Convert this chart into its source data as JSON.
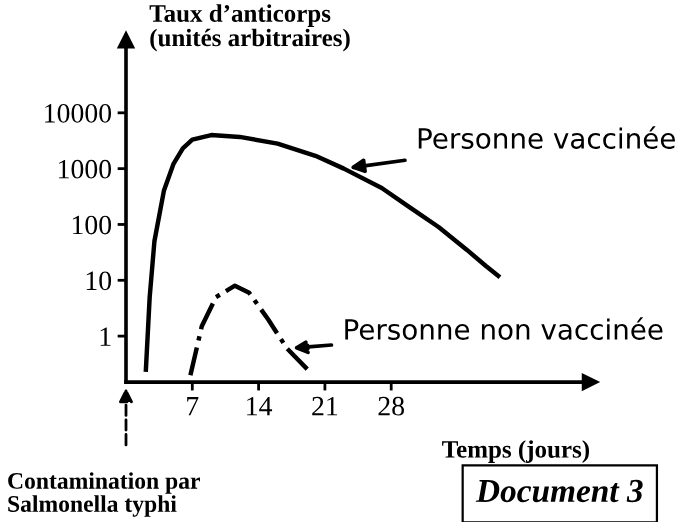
{
  "chart_data": {
    "type": "line",
    "xlabel": "Temps (jours)",
    "ylabel": "Taux d’anticorps\n(unités arbitraires)",
    "log": "y",
    "xlim": [
      0,
      49
    ],
    "ylim": [
      0.15,
      200000
    ],
    "xticks": [
      7,
      14,
      21,
      28
    ],
    "yticks": [
      1,
      10,
      100,
      1000,
      10000
    ],
    "grid": false,
    "series": [
      {
        "name": "Personne vaccinée",
        "color": "#000000",
        "line_style": "solid",
        "x": [
          2.1,
          2.5,
          3,
          4,
          5,
          6,
          7,
          9,
          12,
          16,
          20,
          23,
          27,
          30,
          33,
          36,
          38,
          39.3
        ],
        "values": [
          0.25,
          5,
          50,
          400,
          1200,
          2300,
          3300,
          4000,
          3700,
          2800,
          1700,
          1000,
          450,
          200,
          90,
          35,
          18,
          12
        ]
      },
      {
        "name": "Personne non vaccinée",
        "color": "#000000",
        "line_style": "dashdot",
        "x": [
          6.8,
          8,
          9.5,
          11.5,
          13,
          15,
          17,
          19.2
        ],
        "values": [
          0.2,
          1.5,
          5,
          8,
          6,
          2,
          0.6,
          0.25
        ]
      }
    ],
    "annotations": [
      "Contamination par\nSalmonella typhi",
      "Document 3"
    ]
  }
}
